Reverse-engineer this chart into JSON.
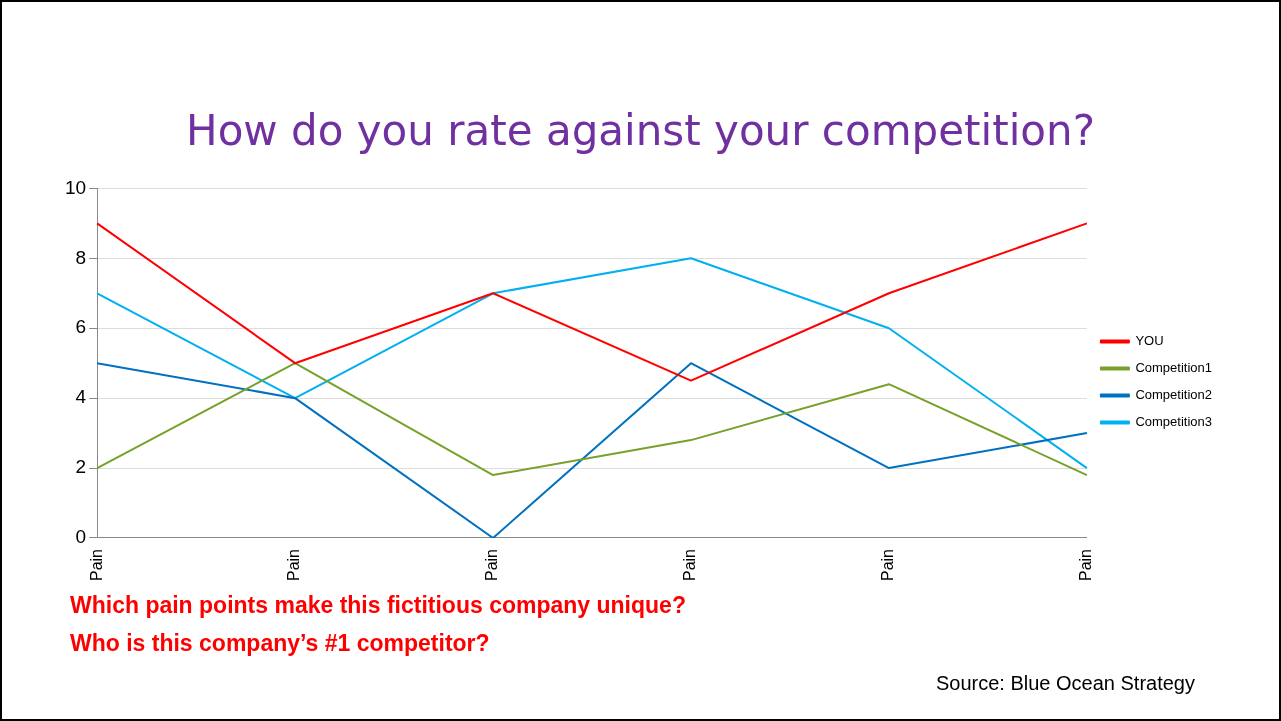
{
  "chart_data": {
    "type": "line",
    "title": "How do you rate against your competition?",
    "categories": [
      "Pain",
      "Pain",
      "Pain",
      "Pain",
      "Pain",
      "Pain"
    ],
    "series": [
      {
        "name": "YOU",
        "color": "#ff0000",
        "values": [
          9,
          5,
          7,
          4.5,
          7,
          9
        ]
      },
      {
        "name": "Competition1",
        "color": "#77a12a",
        "values": [
          2,
          5,
          1.8,
          2.8,
          4.4,
          1.8
        ]
      },
      {
        "name": "Competition2",
        "color": "#0070c0",
        "values": [
          5,
          4,
          0,
          5,
          2,
          3
        ]
      },
      {
        "name": "Competition3",
        "color": "#00b0f0",
        "values": [
          7,
          4,
          7,
          8,
          6,
          2
        ]
      }
    ],
    "ylim": [
      0,
      10
    ],
    "yticks": [
      0,
      2,
      4,
      6,
      8,
      10
    ],
    "grid": "y",
    "legend": "right",
    "marker": "none",
    "line_style": "solid",
    "annotations": [
      "Which pain points make this fictitious company unique?",
      "Who is this company’s #1 competitor?",
      "Source: Blue Ocean Strategy"
    ]
  }
}
